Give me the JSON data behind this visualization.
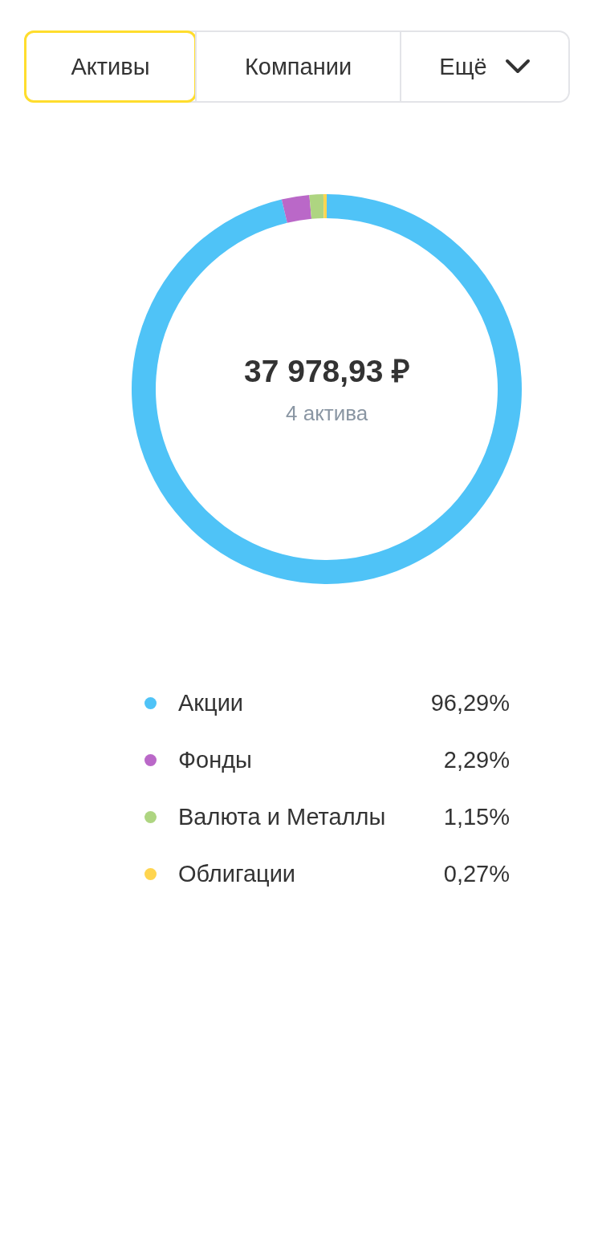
{
  "chart_data": [
    {
      "type": "other",
      "annotations": [
        "Активы",
        "Компании",
        "Ещё"
      ]
    },
    {
      "type": "donut",
      "categories": [
        "Акции",
        "Фонды",
        "Валюта и Металлы",
        "Облигации"
      ],
      "values": [
        96.29,
        2.29,
        1.15,
        0.27
      ],
      "colors": [
        "#4fc3f7",
        "#ba68c8",
        "#aed581",
        "#ffd54f"
      ],
      "value_labels": [
        "96,29%",
        "2,29%",
        "1,15%",
        "0,27%"
      ],
      "annotations": [
        "37 978,93 ₽",
        "4 актива"
      ],
      "legend": "bottom"
    }
  ]
}
